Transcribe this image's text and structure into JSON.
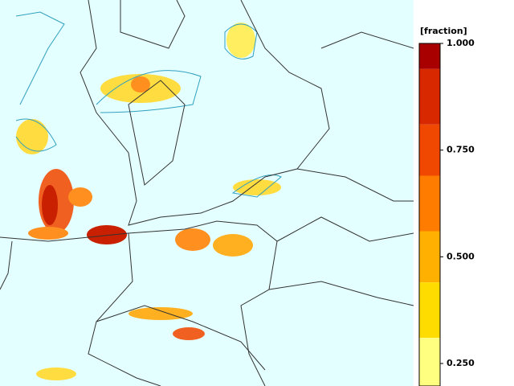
{
  "legend": {
    "title": "[fraction]",
    "ticks": [
      {
        "value": 1.0,
        "label": "1.000"
      },
      {
        "value": 0.75,
        "label": "0.750"
      },
      {
        "value": 0.5,
        "label": "0.500"
      },
      {
        "value": 0.25,
        "label": "0.250"
      }
    ],
    "bands": [
      {
        "from": 0.94,
        "to": 1.0,
        "color": "#a80000"
      },
      {
        "from": 0.81,
        "to": 0.94,
        "color": "#d82800"
      },
      {
        "from": 0.69,
        "to": 0.81,
        "color": "#f04800"
      },
      {
        "from": 0.56,
        "to": 0.69,
        "color": "#ff7c00"
      },
      {
        "from": 0.44,
        "to": 0.56,
        "color": "#ffb000"
      },
      {
        "from": 0.31,
        "to": 0.44,
        "color": "#ffdc00"
      },
      {
        "from": 0.19,
        "to": 0.31,
        "color": "#ffff80"
      }
    ]
  }
}
